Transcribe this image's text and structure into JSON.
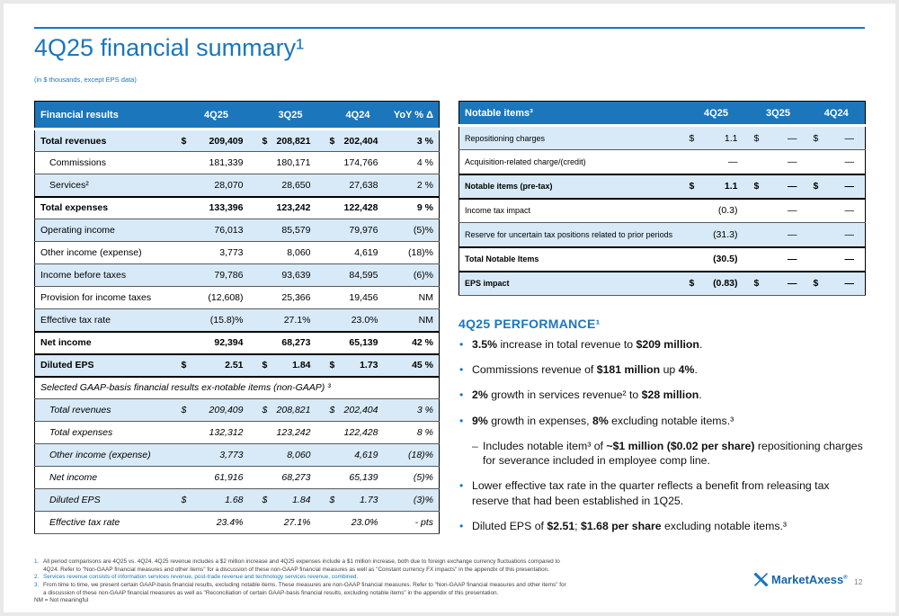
{
  "slide": {
    "title": "4Q25 financial summary¹",
    "subtitle": "(in $ thousands, except EPS data)",
    "page_number": "12",
    "accent_color": "#1B76BC",
    "row_shade_color": "#D8EAF8"
  },
  "financial_table": {
    "headers": [
      "Financial results",
      "4Q25",
      "3Q25",
      "4Q24",
      "YoY % Δ"
    ],
    "rows": [
      {
        "label": "Total revenues",
        "values": [
          "209,409",
          "208,821",
          "202,404",
          "3 %"
        ],
        "dollars": [
          1,
          1,
          1,
          0
        ],
        "bold": true,
        "shade": true
      },
      {
        "label": "Commissions",
        "values": [
          "181,339",
          "180,171",
          "174,766",
          "4 %"
        ],
        "indent": true
      },
      {
        "label": "Services²",
        "values": [
          "28,070",
          "28,650",
          "27,638",
          "2 %"
        ],
        "indent": true,
        "shade": true
      },
      {
        "label": "Total expenses",
        "values": [
          "133,396",
          "123,242",
          "122,428",
          "9 %"
        ],
        "bold": true,
        "bt": true
      },
      {
        "label": "Operating income",
        "values": [
          "76,013",
          "85,579",
          "79,976",
          "(5)%"
        ],
        "shade": true
      },
      {
        "label": "Other income (expense)",
        "values": [
          "3,773",
          "8,060",
          "4,619",
          "(18)%"
        ]
      },
      {
        "label": "Income before taxes",
        "values": [
          "79,786",
          "93,639",
          "84,595",
          "(6)%"
        ],
        "shade": true
      },
      {
        "label": "Provision for income taxes",
        "values": [
          "(12,608)",
          "25,366",
          "19,456",
          "NM"
        ]
      },
      {
        "label": "Effective tax rate",
        "values": [
          "(15.8)%",
          "27.1%",
          "23.0%",
          "NM"
        ],
        "shade": true
      },
      {
        "label": "Net income",
        "values": [
          "92,394",
          "68,273",
          "65,139",
          "42 %"
        ],
        "bold": true,
        "bt": true
      },
      {
        "label": "Diluted EPS",
        "values": [
          "2.51",
          "1.84",
          "1.73",
          "45 %"
        ],
        "dollars": [
          1,
          1,
          1,
          0
        ],
        "bold": true,
        "shade": true,
        "bt": true,
        "bb": true
      },
      {
        "label": "Selected GAAP-basis financial results ex-notable items (non-GAAP) ³",
        "span": true,
        "italic": true
      },
      {
        "label": "Total revenues",
        "values": [
          "209,409",
          "208,821",
          "202,404",
          "3 %"
        ],
        "dollars": [
          1,
          1,
          1,
          0
        ],
        "italic": true,
        "indent": true,
        "shade": true
      },
      {
        "label": "Total expenses",
        "values": [
          "132,312",
          "123,242",
          "122,428",
          "8 %"
        ],
        "italic": true,
        "indent": true
      },
      {
        "label": "Other income (expense)",
        "values": [
          "3,773",
          "8,060",
          "4,619",
          "(18)%"
        ],
        "italic": true,
        "indent": true,
        "shade": true
      },
      {
        "label": "Net income",
        "values": [
          "61,916",
          "68,273",
          "65,139",
          "(5)%"
        ],
        "italic": true,
        "indent": true
      },
      {
        "label": "Diluted EPS",
        "values": [
          "1.68",
          "1.84",
          "1.73",
          "(3)%"
        ],
        "dollars": [
          1,
          1,
          1,
          0
        ],
        "italic": true,
        "indent": true,
        "shade": true
      },
      {
        "label": "Effective tax rate",
        "values": [
          "23.4%",
          "27.1%",
          "23.0%",
          "- pts"
        ],
        "italic": true,
        "indent": true
      }
    ]
  },
  "notable_table": {
    "headers": [
      "Notable items³",
      "4Q25",
      "3Q25",
      "4Q24"
    ],
    "rows": [
      {
        "label": "Repositioning charges",
        "values": [
          "1.1",
          "—",
          "—"
        ],
        "dollars": [
          1,
          1,
          1
        ],
        "shade": true
      },
      {
        "label": "Acquisition-related charge/(credit)",
        "values": [
          "—",
          "—",
          "—"
        ]
      },
      {
        "label": "Notable items (pre-tax)",
        "values": [
          "1.1",
          "—",
          "—"
        ],
        "dollars": [
          1,
          1,
          1
        ],
        "bold": true,
        "shade": true,
        "bt": true,
        "bb": true
      },
      {
        "label": "Income tax impact",
        "values": [
          "(0.3)",
          "—",
          "—"
        ]
      },
      {
        "label": "Reserve for uncertain tax positions related to prior periods",
        "values": [
          "(31.3)",
          "—",
          "—"
        ],
        "shade": true
      },
      {
        "label": "Total Notable Items",
        "values": [
          "(30.5)",
          "—",
          "—"
        ],
        "bold": true,
        "bt": true,
        "bb": true
      },
      {
        "label": "EPS impact",
        "values": [
          "(0.83)",
          "—",
          "—"
        ],
        "dollars": [
          1,
          1,
          1
        ],
        "bold": true,
        "shade": true,
        "bt": true
      }
    ]
  },
  "performance": {
    "heading": "4Q25 PERFORMANCE¹",
    "bullets": [
      {
        "type": "main",
        "runs": [
          {
            "t": "3.5%",
            "b": 1
          },
          {
            "t": " increase in total revenue to ",
            "b": 0
          },
          {
            "t": "$209 million",
            "b": 1
          },
          {
            "t": ".",
            "b": 0
          }
        ]
      },
      {
        "type": "main",
        "runs": [
          {
            "t": "Commissions revenue of ",
            "b": 0
          },
          {
            "t": "$181 million",
            "b": 1
          },
          {
            "t": " up ",
            "b": 0
          },
          {
            "t": "4%",
            "b": 1
          },
          {
            "t": ".",
            "b": 0
          }
        ]
      },
      {
        "type": "main",
        "runs": [
          {
            "t": "2%",
            "b": 1
          },
          {
            "t": " growth in services revenue² to ",
            "b": 0
          },
          {
            "t": "$28 million",
            "b": 1
          },
          {
            "t": ".",
            "b": 0
          }
        ]
      },
      {
        "type": "main",
        "runs": [
          {
            "t": "9%",
            "b": 1
          },
          {
            "t": " growth in expenses, ",
            "b": 0
          },
          {
            "t": "8%",
            "b": 1
          },
          {
            "t": " excluding notable items.³",
            "b": 0
          }
        ]
      },
      {
        "type": "sub",
        "runs": [
          {
            "t": "Includes notable item³ of ",
            "b": 0
          },
          {
            "t": "~$1 million ($0.02 per share)",
            "b": 1
          },
          {
            "t": " repositioning charges for severance included in employee comp line.",
            "b": 0
          }
        ]
      },
      {
        "type": "main",
        "runs": [
          {
            "t": "Lower effective tax rate in the quarter reflects a benefit from releasing tax reserve that had been established in 1Q25.",
            "b": 0
          }
        ]
      },
      {
        "type": "main",
        "runs": [
          {
            "t": "Diluted EPS of ",
            "b": 0
          },
          {
            "t": "$2.51",
            "b": 1
          },
          {
            "t": "; ",
            "b": 0
          },
          {
            "t": "$1.68 per share",
            "b": 1
          },
          {
            "t": " excluding notable items.³",
            "b": 0
          }
        ]
      }
    ]
  },
  "footnotes": {
    "items": [
      {
        "num": "1.",
        "text": "All period comparisons are 4Q25 vs. 4Q24. 4Q25 revenue includes a $2 million increase and 4Q25 expenses include a $1 million increase, both due to foreign exchange currency fluctuations compared to 4Q24. Refer to \"Non-GAAP financial measures and other items\" for a discussion of these non-GAAP financial measures as well as \"Constant currency FX impacts\" in the appendix of this presentation."
      },
      {
        "num": "2.",
        "text": "Services revenue consists of information services revenue, post-trade revenue and technology services revenue, combined.",
        "blue": true
      },
      {
        "num": "3.",
        "text": "From time to time, we present certain GAAP-basis financial results, excluding notable items. These measures are non-GAAP financial measures. Refer to \"Non-GAAP financial measures and other items\" for a discussion of these non-GAAP financial measures as well as \"Reconciliation of certain GAAP-basis financial results, excluding notable items\" in the appendix of this presentation."
      },
      {
        "num": "",
        "text": "NM = Not meaningful"
      }
    ]
  },
  "logo": {
    "brand": "MarketAxess",
    "registered": "®"
  }
}
